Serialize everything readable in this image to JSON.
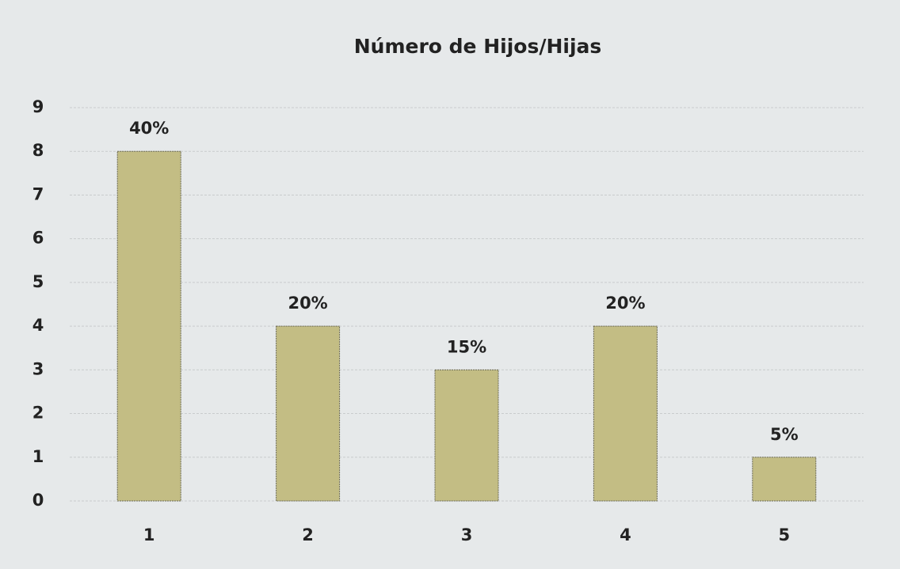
{
  "chart_data": {
    "type": "bar",
    "title": "Número de Hijos/Hijas",
    "categories": [
      "1",
      "2",
      "3",
      "4",
      "5"
    ],
    "values": [
      8,
      4,
      3,
      4,
      1
    ],
    "share_labels": [
      "40%",
      "20%",
      "15%",
      "20%",
      "5%"
    ],
    "color": "#c3bd84",
    "ylim": [
      0,
      9
    ],
    "yticks": [
      0,
      1,
      2,
      3,
      4,
      5,
      6,
      7,
      8,
      9
    ],
    "grid": true
  }
}
